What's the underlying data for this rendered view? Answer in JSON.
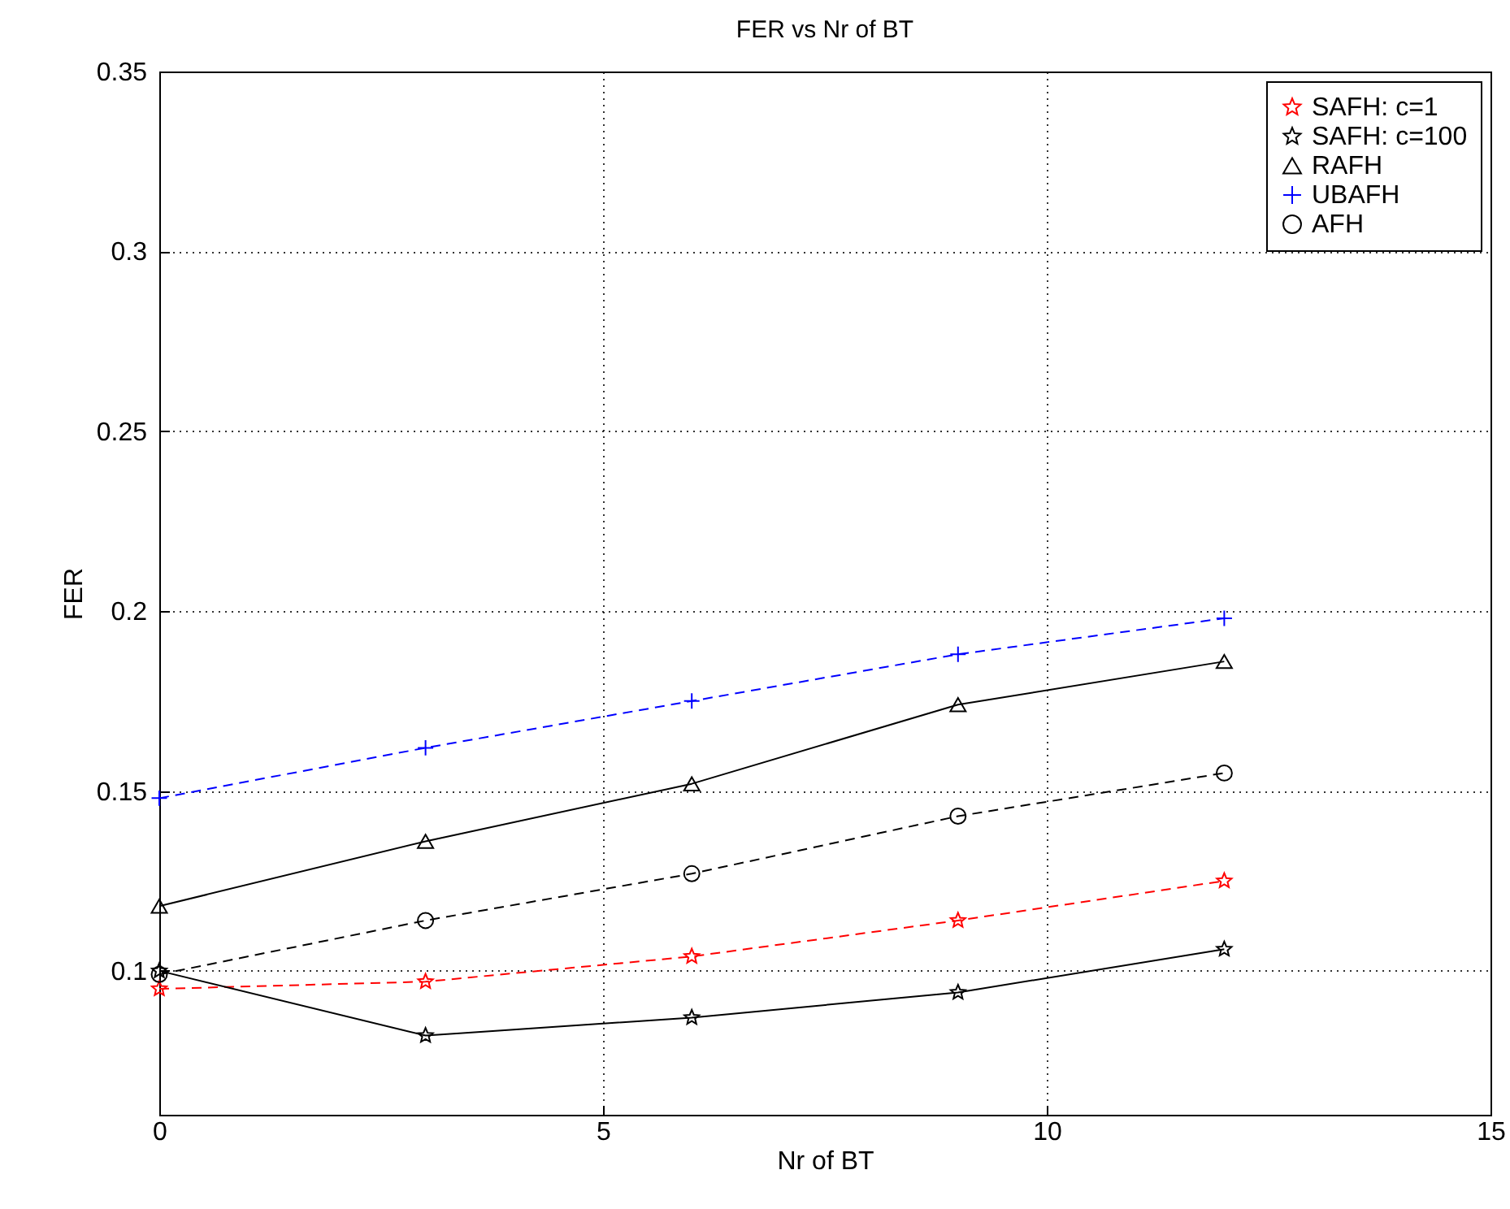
{
  "chart_data": {
    "type": "line",
    "title": "FER vs Nr of BT",
    "xlabel": "Nr of BT",
    "ylabel": "FER",
    "x": [
      0,
      3,
      6,
      9,
      12
    ],
    "series": [
      {
        "name": "SAFH: c=1",
        "color": "#ff0000",
        "marker": "star",
        "line_style": "dashed",
        "values": [
          0.095,
          0.097,
          0.104,
          0.114,
          0.125
        ]
      },
      {
        "name": "SAFH: c=100",
        "color": "#000000",
        "marker": "star",
        "line_style": "solid",
        "values": [
          0.1,
          0.082,
          0.087,
          0.094,
          0.106
        ]
      },
      {
        "name": "RAFH",
        "color": "#000000",
        "marker": "triangle",
        "line_style": "solid",
        "values": [
          0.118,
          0.136,
          0.152,
          0.174,
          0.186
        ]
      },
      {
        "name": "UBAFH",
        "color": "#0000ff",
        "marker": "cross",
        "line_style": "dashed",
        "values": [
          0.148,
          0.162,
          0.175,
          0.188,
          0.198
        ]
      },
      {
        "name": "AFH",
        "color": "#000000",
        "marker": "circle",
        "line_style": "dashed",
        "values": [
          0.099,
          0.114,
          0.127,
          0.143,
          0.155
        ]
      }
    ],
    "xlim": [
      0,
      15
    ],
    "xticks": [
      0,
      5,
      10,
      15
    ],
    "ylim": [
      0.06,
      0.35
    ],
    "yticks": [
      0.1,
      0.15,
      0.2,
      0.25,
      0.3,
      0.35
    ],
    "grid": true,
    "legend": "top right"
  }
}
